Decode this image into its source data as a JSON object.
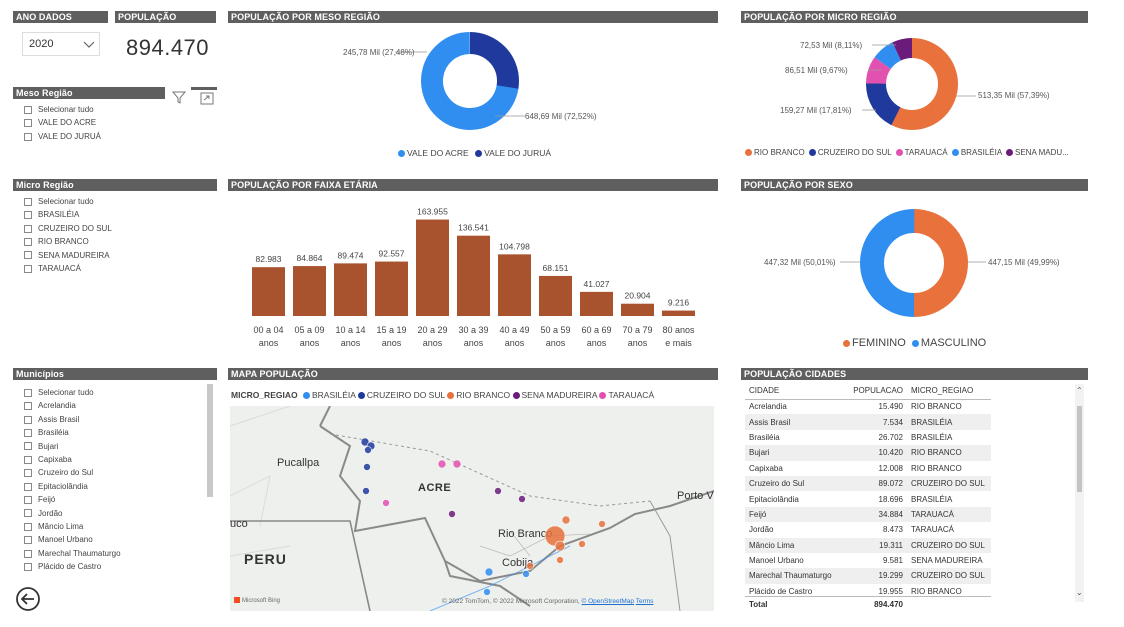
{
  "filters": {
    "ano_header": "ANO DADOS",
    "ano_value": "2020",
    "pop_header": "POPULAÇÃO",
    "pop_value": "894.470",
    "meso": {
      "title": "Meso Região",
      "items": [
        "Selecionar tudo",
        "VALE DO ACRE",
        "VALE DO JURUÁ"
      ]
    },
    "micro": {
      "title": "Micro Região",
      "items": [
        "Selecionar tudo",
        "BRASILÉIA",
        "CRUZEIRO DO SUL",
        "RIO BRANCO",
        "SENA MADUREIRA",
        "TARAUACÁ"
      ]
    },
    "municipios": {
      "title": "Municípios",
      "items": [
        "Selecionar tudo",
        "Acrelandia",
        "Assis Brasil",
        "Brasiléia",
        "Bujari",
        "Capixaba",
        "Cruzeiro do Sul",
        "Epitaciolândia",
        "Feijó",
        "Jordão",
        "Mâncio Lima",
        "Manoel Urbano",
        "Marechal Thaumaturgo",
        "Plácido de Castro"
      ]
    }
  },
  "meso_chart": {
    "title": "POPULAÇÃO POR MESO REGIÃO",
    "label_jurua": "245,78 Mil (27,48%)",
    "label_acre": "648,69 Mil (72,52%)",
    "legend": [
      "VALE DO ACRE",
      "VALE DO JURUÁ"
    ]
  },
  "micro_chart": {
    "title": "POPULAÇÃO POR MICRO REGIÃO",
    "labels": [
      "72,53 Mil (8,11%)",
      "86,51 Mil (9,67%)",
      "159,27 Mil (17,81%)",
      "513,35 Mil (57,39%)"
    ],
    "legend": [
      "RIO BRANCO",
      "CRUZEIRO DO SUL",
      "TARAUACÁ",
      "BRASILÉIA",
      "SENA MADU..."
    ]
  },
  "sexo_chart": {
    "title": "POPULAÇÃO POR SEXO",
    "label_masc": "447,32 Mil (50,01%)",
    "label_fem": "447,15 Mil (49,99%)",
    "legend": [
      "FEMININO",
      "MASCULINO"
    ]
  },
  "faixa_title": "POPULAÇÃO POR FAIXA ETÁRIA",
  "map": {
    "title": "MAPA POPULAÇÃO",
    "legend_title": "MICRO_REGIAO",
    "legend": [
      "BRASILÉIA",
      "CRUZEIRO DO SUL",
      "RIO BRANCO",
      "SENA MADUREIRA",
      "TARAUACÁ"
    ],
    "places": [
      "Pucallpa",
      "ACRE",
      "Porto V",
      "uco",
      "PERU",
      "Rio Branco",
      "Cobija"
    ],
    "bing": "Microsoft Bing",
    "copyright": "© 2022 TomTom, © 2022 Microsoft Corporation,",
    "osm": "© OpenStreetMap",
    "terms": "Terms"
  },
  "cidades": {
    "title": "POPULAÇÃO CIDADES",
    "columns": [
      "CIDADE",
      "POPULACAO",
      "MICRO_REGIAO"
    ],
    "rows": [
      [
        "Acrelandia",
        "15.490",
        "RIO BRANCO"
      ],
      [
        "Assis Brasil",
        "7.534",
        "BRASILÉIA"
      ],
      [
        "Brasiléia",
        "26.702",
        "BRASILÉIA"
      ],
      [
        "Bujari",
        "10.420",
        "RIO BRANCO"
      ],
      [
        "Capixaba",
        "12.008",
        "RIO BRANCO"
      ],
      [
        "Cruzeiro do Sul",
        "89.072",
        "CRUZEIRO DO SUL"
      ],
      [
        "Epitaciolândia",
        "18.696",
        "BRASILÉIA"
      ],
      [
        "Feijó",
        "34.884",
        "TARAUACÁ"
      ],
      [
        "Jordão",
        "8.473",
        "TARAUACÁ"
      ],
      [
        "Mâncio Lima",
        "19.311",
        "CRUZEIRO DO SUL"
      ],
      [
        "Manoel Urbano",
        "9.581",
        "SENA MADUREIRA"
      ],
      [
        "Marechal Thaumaturgo",
        "19.299",
        "CRUZEIRO DO SUL"
      ],
      [
        "Plácido de Castro",
        "19.955",
        "RIO BRANCO"
      ]
    ],
    "total_label": "Total",
    "total_value": "894.470"
  },
  "colors": {
    "header": "#5f5f5f",
    "bar": "#a9532e",
    "rio_branco": "#e8713c",
    "cruzeiro": "#1f3a9c",
    "tarauaca": "#e351b0",
    "brasileia": "#2f8ef0",
    "sena": "#6b1b7a"
  },
  "chart_data": [
    {
      "type": "bar",
      "title": "POPULAÇÃO POR FAIXA ETÁRIA",
      "categories": [
        "00 a 04 anos",
        "05 a 09 anos",
        "10 a 14 anos",
        "15 a 19 anos",
        "20 a 29 anos",
        "30 a 39 anos",
        "40 a 49 anos",
        "50 a 59 anos",
        "60 a 69 anos",
        "70 a 79 anos",
        "80 anos e mais"
      ],
      "tick_lines": [
        [
          "00 a 04",
          "anos"
        ],
        [
          "05 a 09",
          "anos"
        ],
        [
          "10 a 14",
          "anos"
        ],
        [
          "15 a 19",
          "anos"
        ],
        [
          "20 a 29",
          "anos"
        ],
        [
          "30 a 39",
          "anos"
        ],
        [
          "40 a 49",
          "anos"
        ],
        [
          "50 a 59",
          "anos"
        ],
        [
          "60 a 69",
          "anos"
        ],
        [
          "70 a 79",
          "anos"
        ],
        [
          "80 anos",
          "e mais"
        ]
      ],
      "values": [
        82983,
        84864,
        89474,
        92557,
        163955,
        136541,
        104798,
        68151,
        41027,
        20904,
        9216
      ],
      "labels": [
        "82.983",
        "84.864",
        "89.474",
        "92.557",
        "163.955",
        "136.541",
        "104.798",
        "68.151",
        "41.027",
        "20.904",
        "9.216"
      ]
    },
    {
      "type": "pie",
      "title": "POPULAÇÃO POR MESO REGIÃO",
      "categories": [
        "VALE DO ACRE",
        "VALE DO JURUÁ"
      ],
      "values": [
        648.69,
        245.78
      ]
    },
    {
      "type": "pie",
      "title": "POPULAÇÃO POR MICRO REGIÃO",
      "categories": [
        "RIO BRANCO",
        "CRUZEIRO DO SUL",
        "TARAUACÁ",
        "BRASILÉIA",
        "SENA MADUREIRA"
      ],
      "values": [
        513.35,
        159.27,
        86.51,
        72.53,
        62.81
      ]
    },
    {
      "type": "pie",
      "title": "POPULAÇÃO POR SEXO",
      "categories": [
        "FEMININO",
        "MASCULINO"
      ],
      "values": [
        447.15,
        447.32
      ]
    }
  ]
}
